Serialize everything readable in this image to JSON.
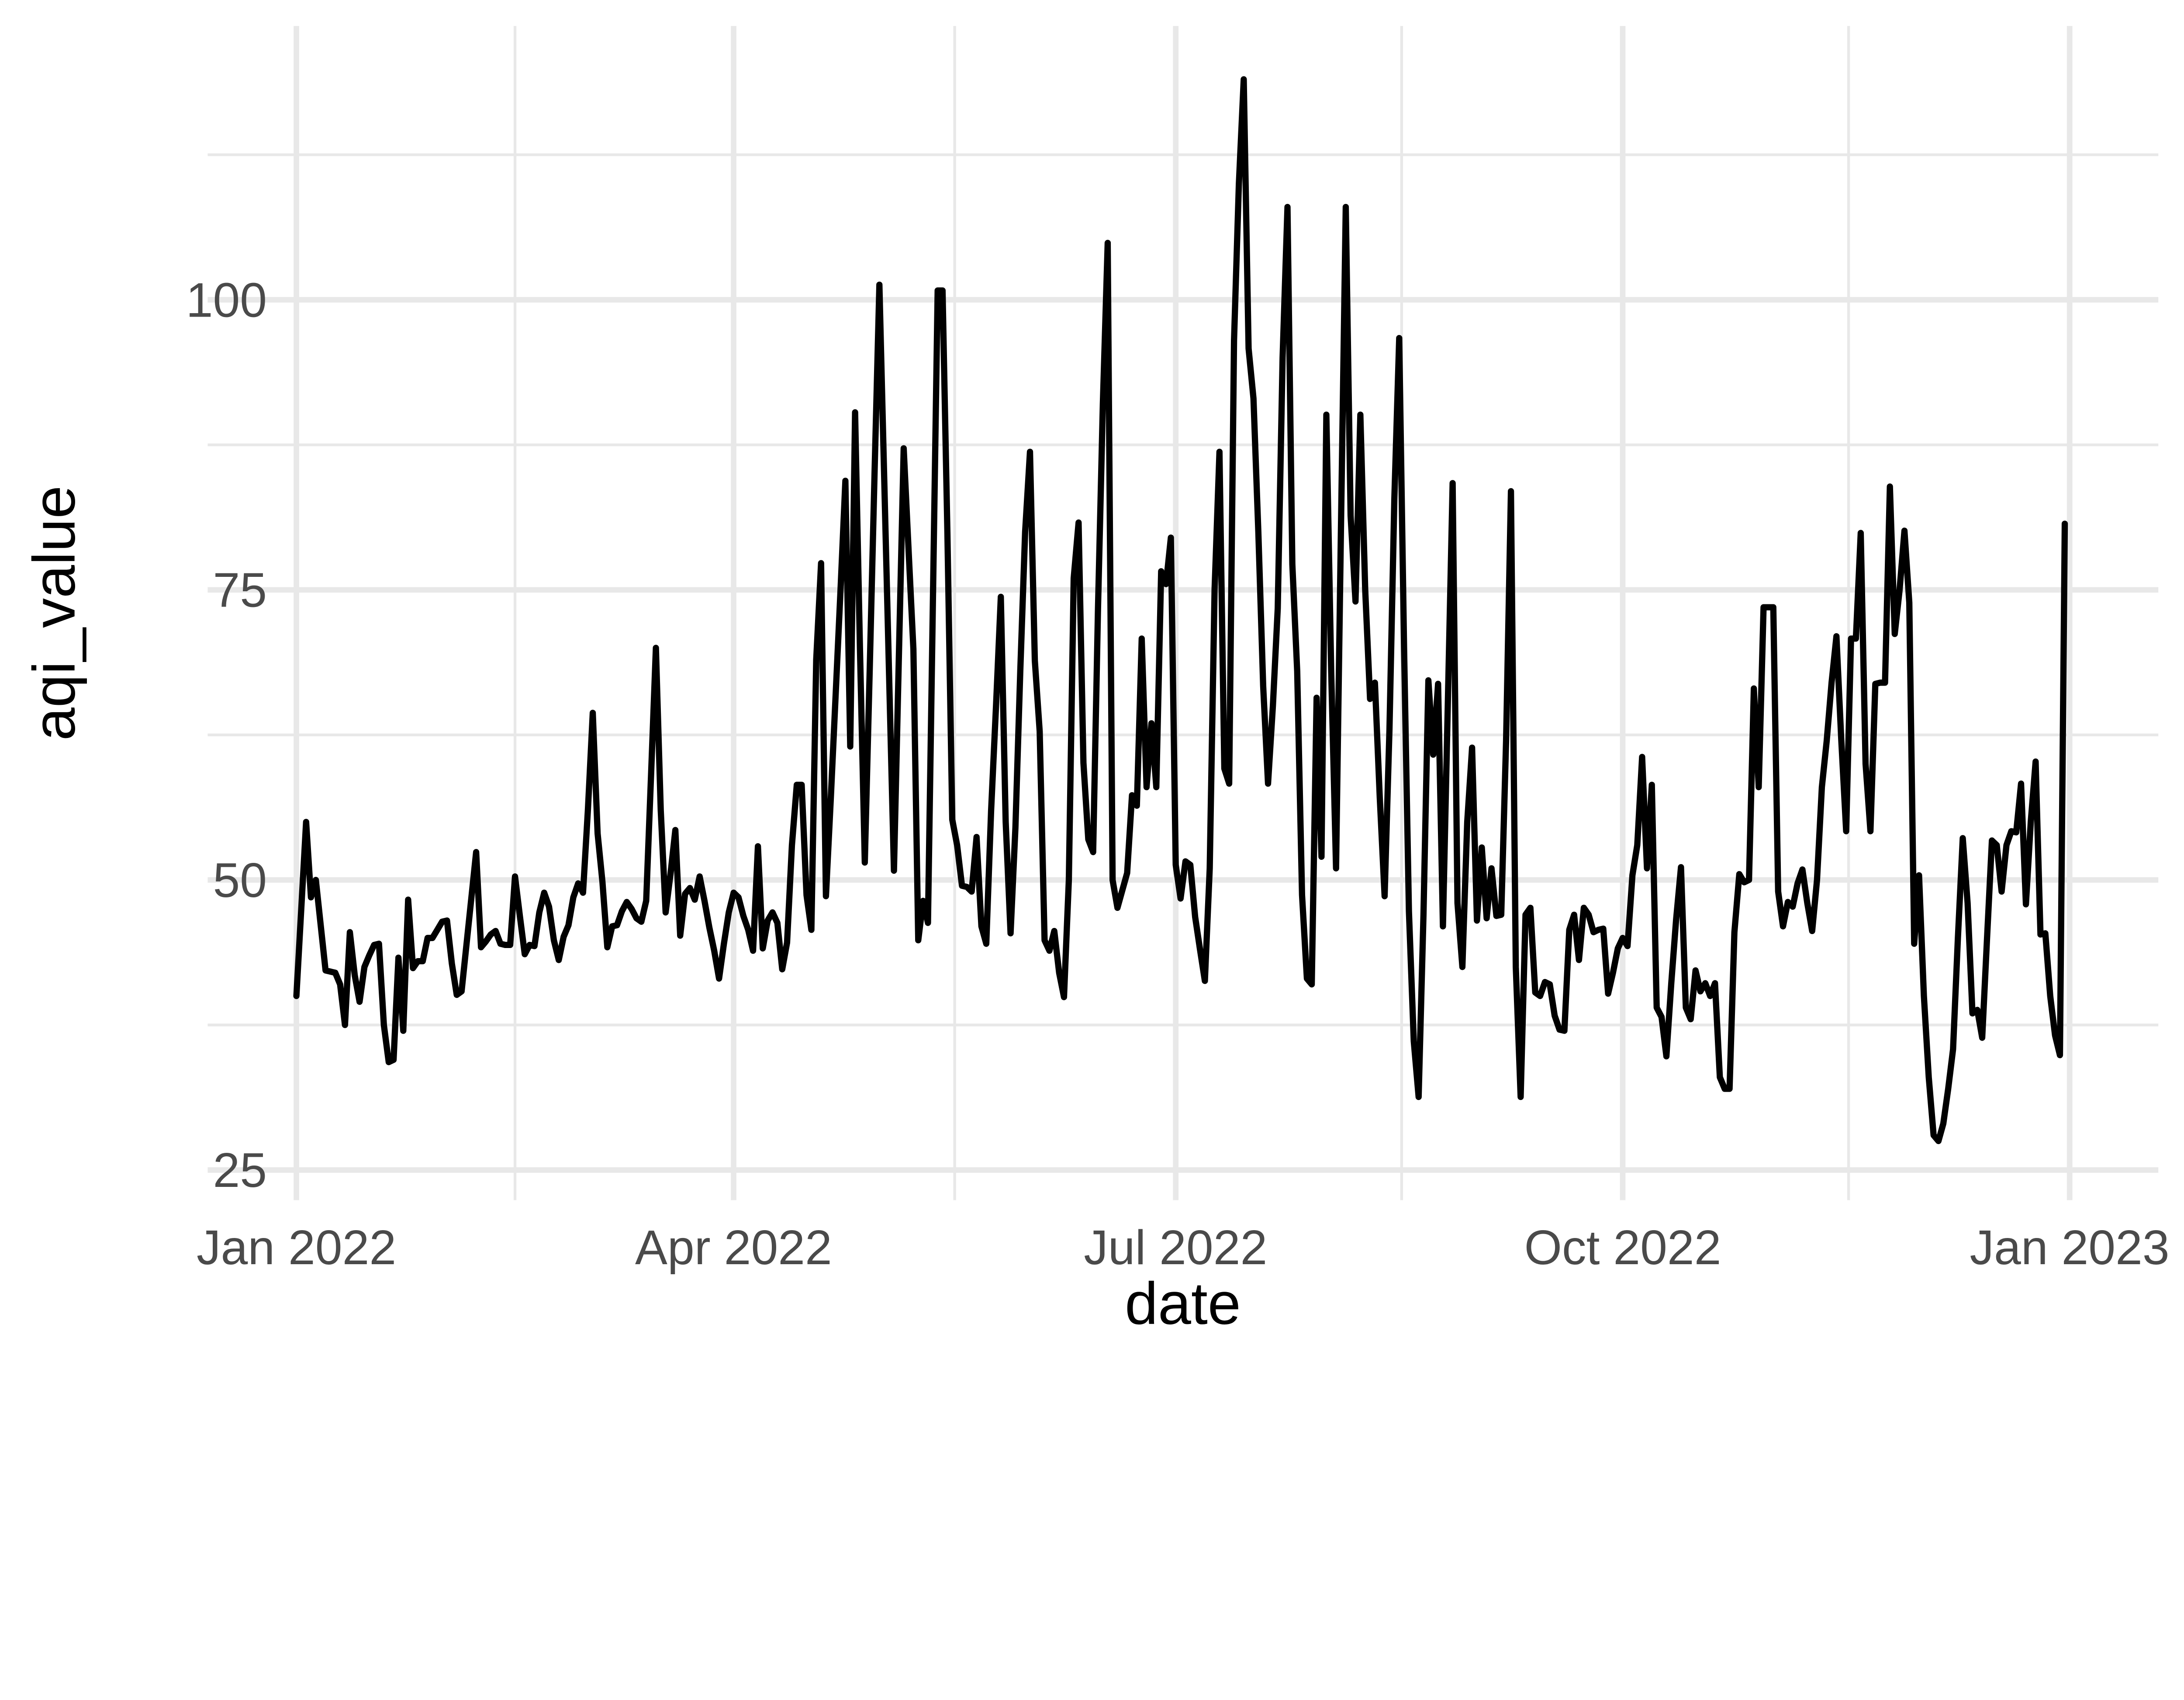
{
  "chart_data": {
    "type": "line",
    "title": "",
    "xlabel": "date",
    "ylabel": "aqi_value",
    "legend_position": "none",
    "grid": true,
    "background": "#ffffff",
    "line_color": "#000000",
    "grid_color": "#e8e8e8",
    "tick_text_color": "#4a4a4a",
    "x_tick_labels": [
      "Jan 2022",
      "Apr 2022",
      "Jul 2022",
      "Oct 2022",
      "Jan 2023"
    ],
    "y_tick_labels": [
      "25",
      "50",
      "75",
      "100"
    ],
    "y_ticks": [
      25,
      50,
      75,
      100
    ],
    "y_minor_ticks": [
      37.5,
      62.5,
      87.5,
      112.5
    ],
    "x_major_tick_days": [
      0,
      90,
      181,
      273,
      365
    ],
    "x_minor_tick_days": [
      45,
      135.5,
      227.5,
      319.5
    ],
    "ylim": [
      22.4,
      123.6
    ],
    "series": [
      {
        "name": "aqi_value",
        "start_date": "2022-01-01",
        "frequency": "daily",
        "values": [
          40,
          47.5,
          55,
          48.5,
          50,
          46.1,
          42.2,
          42.1,
          42,
          41,
          37.5,
          45.5,
          41.8,
          39.5,
          42.5,
          43.5,
          44.4,
          44.5,
          37.5,
          34.3,
          34.5,
          43.3,
          37,
          48.3,
          42.4,
          43,
          43,
          45,
          45,
          45.7,
          46.4,
          46.5,
          42.8,
          40.1,
          40.4,
          44.4,
          48.4,
          52.4,
          44.2,
          44.7,
          45.3,
          45.6,
          44.5,
          44.4,
          44.4,
          50.3,
          46.9,
          43.6,
          44.4,
          44.3,
          47.2,
          48.9,
          47.7,
          44.8,
          43.1,
          45.1,
          46.1,
          48.5,
          49.7,
          48.9,
          56,
          64.4,
          54,
          49.8,
          44.2,
          46,
          46.1,
          47.3,
          48.1,
          47.5,
          46.7,
          46.4,
          48.2,
          59,
          70,
          56,
          47.2,
          50.5,
          54.3,
          45.2,
          48.8,
          49.3,
          48.3,
          50.3,
          48.2,
          45.9,
          43.9,
          41.5,
          44.5,
          47.2,
          48.9,
          48.5,
          46.9,
          45.7,
          43.9,
          52.9,
          44.1,
          46.5,
          47.2,
          46.3,
          42.3,
          44.6,
          53,
          58.2,
          58.2,
          48.7,
          45.7,
          69,
          77.3,
          48.6,
          57,
          66,
          75,
          84.4,
          61.5,
          90.3,
          70,
          51.5,
          68,
          85,
          101.3,
          84.5,
          67.6,
          50.8,
          69,
          87.2,
          78.5,
          69.9,
          44.8,
          48.2,
          46.3,
          73.5,
          100.8,
          100.8,
          79.9,
          55.2,
          53,
          49.5,
          49.4,
          49,
          53.7,
          46,
          44.5,
          56,
          64.9,
          74.4,
          55,
          45.4,
          54.5,
          68,
          80,
          86.9,
          68.9,
          62.8,
          44.8,
          43.9,
          45.6,
          42,
          39.9,
          50,
          76,
          80.8,
          60.1,
          53.5,
          52.4,
          73.4,
          91,
          104.9,
          50,
          47.6,
          49.1,
          50.6,
          57.3,
          56.4,
          70.8,
          58,
          63.5,
          58,
          76.6,
          75.5,
          79.5,
          51.3,
          48.4,
          51.6,
          51.3,
          46.8,
          44,
          41.3,
          51,
          75,
          86.9,
          59.6,
          58.3,
          96.5,
          110,
          119,
          95.8,
          91.5,
          80,
          66.7,
          58.3,
          65,
          73.4,
          95,
          108,
          77.2,
          68,
          48.7,
          41.5,
          41,
          65.7,
          52,
          90.1,
          68,
          51,
          80,
          108,
          81.4,
          74,
          90.1,
          75,
          65.6,
          67,
          57.1,
          48.6,
          63,
          82.9,
          96.7,
          70,
          47.3,
          36.1,
          31.3,
          47,
          67.2,
          60.8,
          66.9,
          46,
          65,
          84.2,
          48,
          42.5,
          55,
          61.4,
          46.5,
          52.8,
          46.7,
          51,
          46.9,
          47,
          62,
          83.5,
          42.5,
          31.3,
          47,
          47.6,
          40.3,
          40,
          41.2,
          41,
          38.3,
          37.1,
          37,
          45.7,
          47,
          43.1,
          47.6,
          47,
          45.5,
          45.7,
          45.8,
          40.2,
          42,
          44.1,
          45,
          44.3,
          50.4,
          53,
          60.6,
          51,
          58.2,
          39,
          38.2,
          34.8,
          41.1,
          46.6,
          51.1,
          39,
          38,
          42.2,
          40.4,
          41.1,
          40,
          41.1,
          33,
          32,
          32,
          45.5,
          50.5,
          49.8,
          50,
          66.5,
          58,
          73.5,
          73.5,
          73.5,
          49,
          46,
          48.1,
          47.7,
          49.7,
          50.9,
          48,
          45.6,
          50,
          58,
          62,
          67,
          71,
          62,
          54.2,
          70.8,
          70.8,
          79.9,
          60,
          54.2,
          66.9,
          67,
          67,
          83.9,
          71.2,
          75,
          80.1,
          73.9,
          44.5,
          50.4,
          40,
          33,
          28,
          27.5,
          29,
          32,
          35.4,
          45,
          53.6,
          48,
          38.5,
          38.8,
          36.4,
          45,
          53.4,
          53,
          49,
          53,
          54.2,
          54.1,
          58.3,
          47.9,
          55,
          60.2,
          45.3,
          45.4,
          40,
          36.6,
          34.9,
          80.7
        ]
      }
    ]
  }
}
